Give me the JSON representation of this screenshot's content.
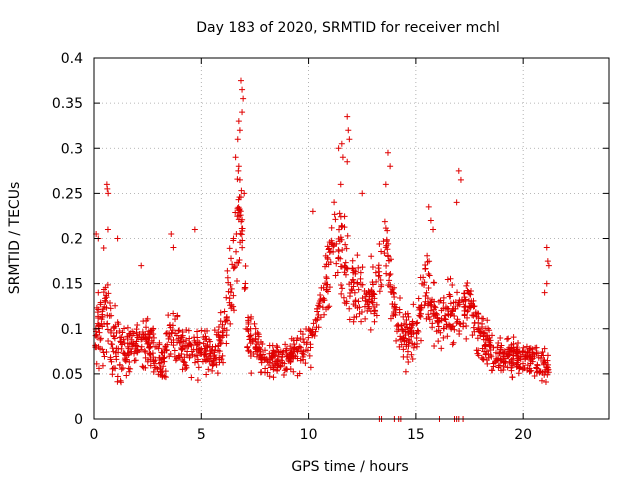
{
  "chart_data": {
    "type": "scatter",
    "title": "Day 183 of 2020, SRMTID for receiver mchl",
    "xlabel": "GPS time / hours",
    "ylabel": "SRMTID / TECUs",
    "xlim": [
      0,
      24
    ],
    "ylim": [
      0,
      0.4
    ],
    "xticks": [
      0,
      5,
      10,
      15,
      20
    ],
    "yticks": [
      0,
      0.05,
      0.1,
      0.15,
      0.2,
      0.25,
      0.3,
      0.35,
      0.4
    ],
    "grid": true,
    "marker": "+",
    "series": [
      {
        "name": "SRMTID",
        "color": "#e00000",
        "envelope": [
          [
            0.0,
            0.09,
            0.04
          ],
          [
            0.3,
            0.11,
            0.05
          ],
          [
            0.5,
            0.12,
            0.07
          ],
          [
            0.8,
            0.09,
            0.04
          ],
          [
            1.2,
            0.07,
            0.03
          ],
          [
            1.7,
            0.08,
            0.03
          ],
          [
            2.2,
            0.09,
            0.03
          ],
          [
            2.7,
            0.08,
            0.03
          ],
          [
            3.2,
            0.06,
            0.02
          ],
          [
            3.6,
            0.1,
            0.04
          ],
          [
            4.1,
            0.08,
            0.03
          ],
          [
            4.6,
            0.07,
            0.03
          ],
          [
            5.0,
            0.08,
            0.03
          ],
          [
            5.5,
            0.07,
            0.02
          ],
          [
            6.0,
            0.09,
            0.03
          ],
          [
            6.4,
            0.15,
            0.05
          ],
          [
            6.7,
            0.22,
            0.07
          ],
          [
            6.9,
            0.2,
            0.06
          ],
          [
            7.2,
            0.09,
            0.03
          ],
          [
            7.8,
            0.07,
            0.02
          ],
          [
            8.5,
            0.065,
            0.02
          ],
          [
            9.3,
            0.07,
            0.02
          ],
          [
            9.8,
            0.08,
            0.03
          ],
          [
            10.3,
            0.1,
            0.03
          ],
          [
            10.8,
            0.15,
            0.04
          ],
          [
            11.2,
            0.2,
            0.05
          ],
          [
            11.6,
            0.18,
            0.05
          ],
          [
            12.0,
            0.15,
            0.04
          ],
          [
            12.6,
            0.13,
            0.03
          ],
          [
            13.2,
            0.15,
            0.04
          ],
          [
            13.6,
            0.19,
            0.04
          ],
          [
            14.0,
            0.12,
            0.04
          ],
          [
            14.5,
            0.09,
            0.03
          ],
          [
            15.0,
            0.09,
            0.03
          ],
          [
            15.5,
            0.15,
            0.05
          ],
          [
            16.0,
            0.1,
            0.03
          ],
          [
            16.5,
            0.12,
            0.04
          ],
          [
            17.0,
            0.11,
            0.03
          ],
          [
            17.5,
            0.13,
            0.03
          ],
          [
            18.0,
            0.09,
            0.03
          ],
          [
            18.7,
            0.07,
            0.02
          ],
          [
            19.5,
            0.07,
            0.02
          ],
          [
            20.2,
            0.07,
            0.02
          ],
          [
            20.8,
            0.06,
            0.02
          ],
          [
            21.2,
            0.06,
            0.02
          ]
        ],
        "spikes": [
          [
            0.6,
            0.26
          ],
          [
            0.62,
            0.255
          ],
          [
            0.66,
            0.25
          ],
          [
            0.65,
            0.21
          ],
          [
            0.1,
            0.205
          ],
          [
            0.2,
            0.2
          ],
          [
            6.85,
            0.375
          ],
          [
            6.9,
            0.365
          ],
          [
            6.95,
            0.355
          ],
          [
            6.9,
            0.34
          ],
          [
            6.75,
            0.33
          ],
          [
            6.8,
            0.32
          ],
          [
            6.7,
            0.31
          ],
          [
            6.6,
            0.29
          ],
          [
            6.75,
            0.28
          ],
          [
            6.8,
            0.265
          ],
          [
            11.8,
            0.335
          ],
          [
            11.85,
            0.32
          ],
          [
            11.9,
            0.31
          ],
          [
            11.55,
            0.305
          ],
          [
            11.4,
            0.3
          ],
          [
            11.6,
            0.29
          ],
          [
            11.8,
            0.285
          ],
          [
            11.5,
            0.26
          ],
          [
            13.7,
            0.295
          ],
          [
            13.8,
            0.28
          ],
          [
            13.6,
            0.26
          ],
          [
            15.6,
            0.235
          ],
          [
            15.7,
            0.22
          ],
          [
            15.8,
            0.21
          ],
          [
            17.0,
            0.275
          ],
          [
            17.1,
            0.265
          ],
          [
            16.9,
            0.24
          ],
          [
            21.1,
            0.19
          ],
          [
            21.15,
            0.175
          ],
          [
            21.2,
            0.17
          ],
          [
            21.1,
            0.15
          ],
          [
            21.0,
            0.14
          ],
          [
            3.6,
            0.205
          ],
          [
            3.7,
            0.19
          ],
          [
            4.7,
            0.21
          ],
          [
            2.2,
            0.17
          ],
          [
            1.1,
            0.2
          ],
          [
            7.0,
            0.25
          ],
          [
            10.2,
            0.23
          ],
          [
            12.5,
            0.25
          ]
        ],
        "zeros": [
          13.3,
          13.4,
          14.0,
          14.2,
          14.3,
          16.1,
          16.8,
          16.9,
          17.0,
          17.2
        ]
      }
    ]
  }
}
